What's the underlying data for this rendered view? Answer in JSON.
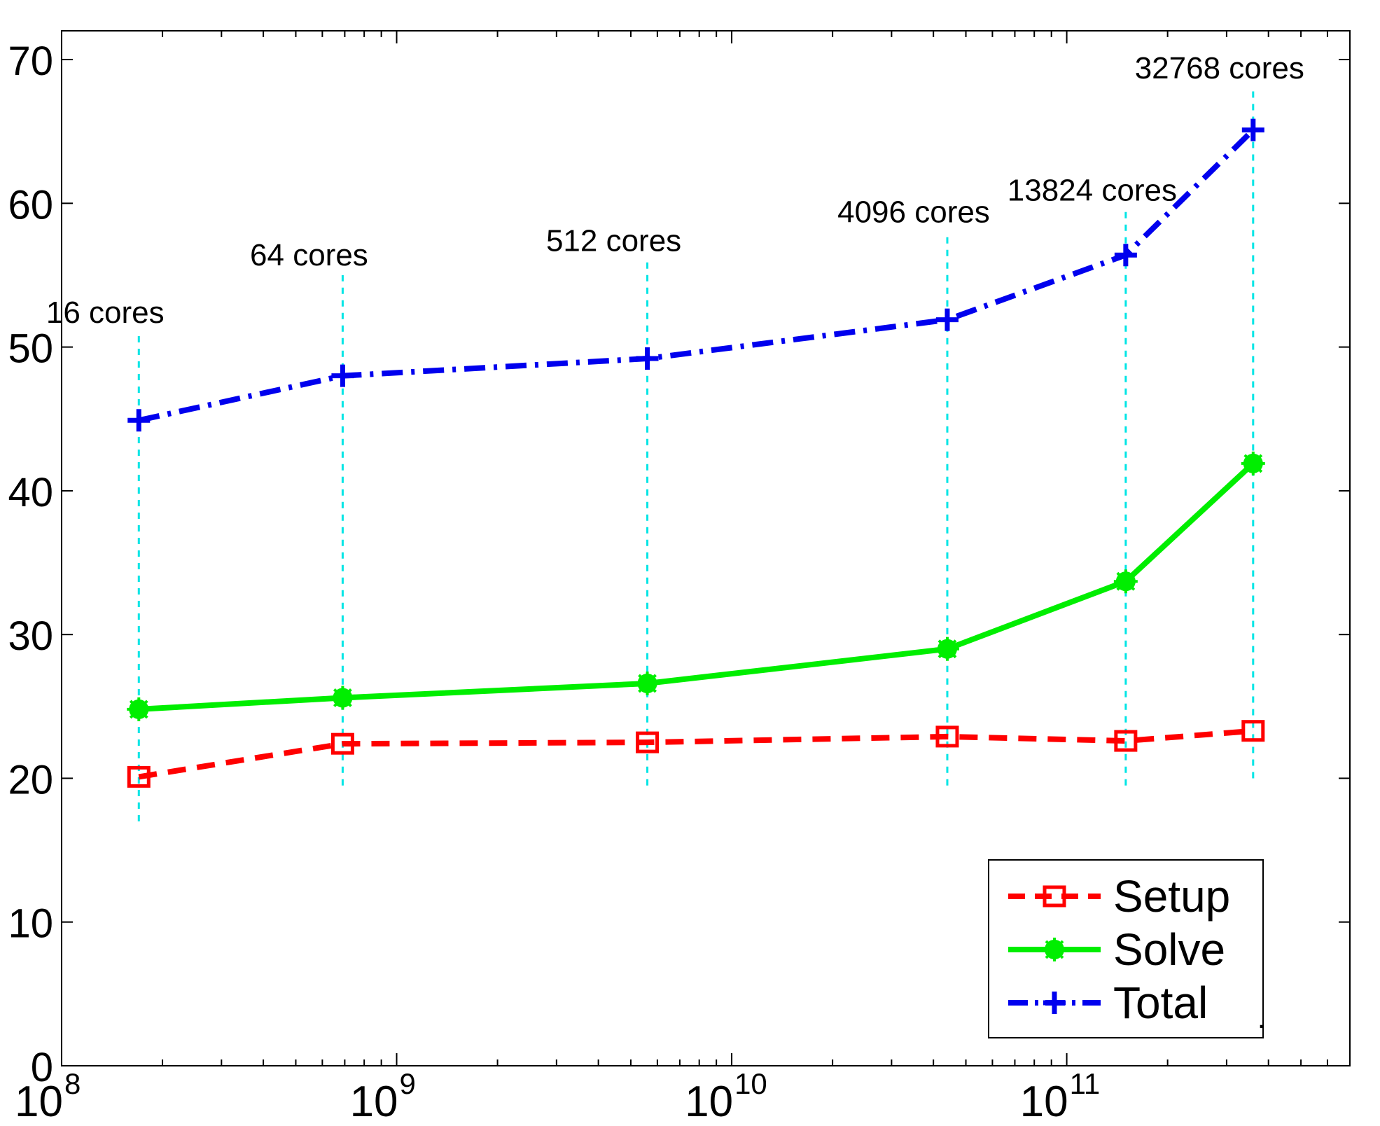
{
  "chart_data": {
    "type": "line",
    "x_scale": "log",
    "xlim": [
      100000000,
      700000000000
    ],
    "ylim": [
      0,
      72
    ],
    "grid": false,
    "legend_position": "bottom-right",
    "x_ticks": [
      {
        "value": 100000000,
        "base": "10",
        "exp": "8"
      },
      {
        "value": 1000000000,
        "base": "10",
        "exp": "9"
      },
      {
        "value": 10000000000,
        "base": "10",
        "exp": "10"
      },
      {
        "value": 100000000000,
        "base": "10",
        "exp": "11"
      }
    ],
    "y_ticks": [
      0,
      10,
      20,
      30,
      40,
      50,
      60,
      70
    ],
    "x": [
      170000000,
      690000000,
      5600000000,
      44000000000,
      150000000000,
      360000000000
    ],
    "series": [
      {
        "name": "Setup",
        "color": "#ff0000",
        "marker": "square",
        "line_style": "dashed",
        "values": [
          20.1,
          22.4,
          22.5,
          22.9,
          22.6,
          23.3
        ]
      },
      {
        "name": "Solve",
        "color": "#00ee00",
        "marker": "circle-star",
        "line_style": "solid",
        "values": [
          24.8,
          25.6,
          26.6,
          29.0,
          33.7,
          41.9
        ]
      },
      {
        "name": "Total",
        "color": "#0000ee",
        "marker": "plus",
        "line_style": "dashdot",
        "values": [
          44.9,
          48.0,
          49.2,
          51.9,
          56.4,
          65.1
        ]
      }
    ],
    "guide_line_color": "#00e5e5",
    "guide_ranges": [
      [
        17,
        51
      ],
      [
        19.5,
        55
      ],
      [
        19.5,
        56
      ],
      [
        19.5,
        58
      ],
      [
        19.5,
        59.5
      ],
      [
        20,
        68
      ]
    ],
    "annotations": [
      "16 cores",
      "64 cores",
      "512 cores",
      "4096 cores",
      "13824 cores",
      "32768 cores"
    ],
    "legend_extra": "."
  }
}
